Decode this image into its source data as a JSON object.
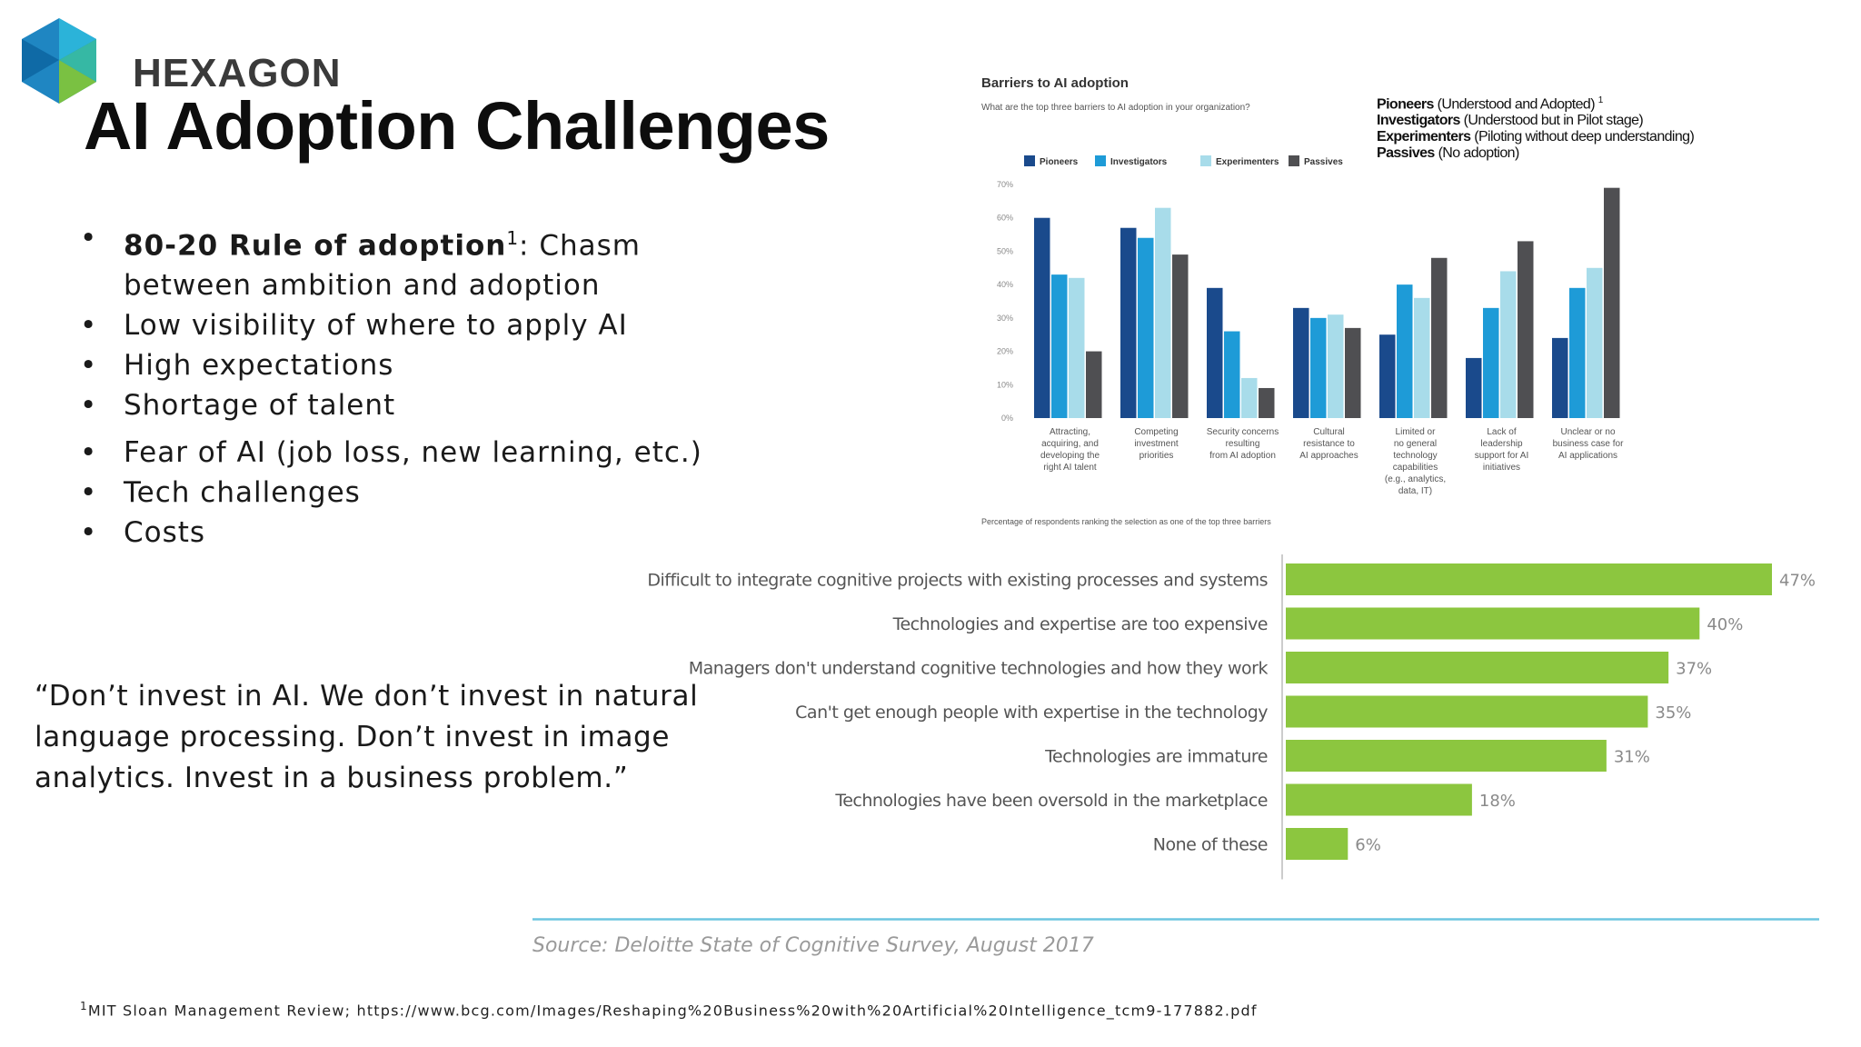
{
  "logo": {
    "text": "HEXAGON",
    "colors": [
      "#0f6aa6",
      "#2bb3d9",
      "#7ac142",
      "#3a3a3a"
    ]
  },
  "title": "AI Adoption Challenges",
  "bullets": [
    {
      "bold": "80-20 Rule of adoption",
      "sup": "1",
      "text": ": Chasm between ambition and adoption"
    },
    {
      "text": "Low visibility of where to apply AI"
    },
    {
      "text": "High expectations"
    },
    {
      "text": "Shortage of talent"
    },
    {
      "text": "Fear of AI (job loss, new learning, etc.)"
    },
    {
      "text": "Tech challenges"
    },
    {
      "text": "Costs"
    }
  ],
  "quote": "“Don’t invest in AI. We don’t invest in natural language processing. Don’t invest in image analytics. Invest in a business problem.”",
  "definitions": [
    {
      "term": "Pioneers",
      "desc": "  (Understood and Adopted)",
      "sup": "1"
    },
    {
      "term": "Investigators",
      "desc": " (Understood but in Pilot stage)"
    },
    {
      "term": "Experimenters",
      "desc": " (Piloting without deep understanding)"
    },
    {
      "term": "Passives",
      "desc": " (No adoption)"
    }
  ],
  "footnote": {
    "sup": "1",
    "text": "MIT Sloan Management Review; https://www.bcg.com/Images/Reshaping%20Business%20with%20Artificial%20Intelligence_tcm9-177882.pdf"
  },
  "source": "Source: Deloitte State of Cognitive Survey, August 2017",
  "chart_data": [
    {
      "type": "bar",
      "title": "Barriers to AI adoption",
      "subtitle": "What are the top three barriers to AI adoption in your organization?",
      "note": "Percentage of respondents ranking the selection as one of the top three barriers",
      "categories": [
        "Attracting, acquiring, and developing the right AI talent",
        "Competing investment priorities",
        "Security concerns resulting from AI adoption",
        "Cultural resistance to AI approaches",
        "Limited or no general technology capabilities (e.g., analytics, data, IT)",
        "Lack of leadership support for AI initiatives",
        "Unclear or no business case for AI applications"
      ],
      "category_lines": [
        [
          "Attracting,",
          "acquiring, and",
          "developing the",
          "right AI talent"
        ],
        [
          "Competing",
          "investment",
          "priorities"
        ],
        [
          "Security concerns",
          "resulting",
          "from AI adoption"
        ],
        [
          "Cultural",
          "resistance to",
          "AI approaches"
        ],
        [
          "Limited or",
          "no general",
          "technology",
          "capabilities",
          "(e.g., analytics,",
          "data, IT)"
        ],
        [
          "Lack of",
          "leadership",
          "support for AI",
          "initiatives"
        ],
        [
          "Unclear or no",
          "business case for",
          "AI applications"
        ]
      ],
      "series": [
        {
          "name": "Pioneers",
          "color": "#1a4a8c",
          "values": [
            60,
            57,
            39,
            33,
            25,
            18,
            24
          ]
        },
        {
          "name": "Investigators",
          "color": "#1e9bd7",
          "values": [
            43,
            54,
            26,
            30,
            40,
            33,
            39
          ]
        },
        {
          "name": "Experimenters",
          "color": "#a8dcea",
          "values": [
            42,
            63,
            12,
            31,
            36,
            44,
            45
          ]
        },
        {
          "name": "Passives",
          "color": "#4f4f52",
          "values": [
            20,
            49,
            9,
            27,
            48,
            53,
            69
          ]
        }
      ],
      "ylim": [
        0,
        70
      ],
      "yticks": [
        0,
        10,
        20,
        30,
        40,
        50,
        60,
        70
      ],
      "ytick_labels": [
        "0%",
        "10%",
        "20%",
        "30%",
        "40%",
        "50%",
        "60%",
        "70%"
      ],
      "legend_position": "top-left",
      "grid": false
    },
    {
      "type": "bar",
      "orientation": "horizontal",
      "categories": [
        "Difficult to integrate cognitive projects with existing processes and systems",
        "Technologies and expertise are too expensive",
        "Managers don't understand cognitive technologies and how they work",
        "Can't get enough people with expertise in the technology",
        "Technologies are immature",
        "Technologies have been oversold in the marketplace",
        "None of these"
      ],
      "values": [
        47,
        40,
        37,
        35,
        31,
        18,
        6
      ],
      "value_labels": [
        "47%",
        "40%",
        "37%",
        "35%",
        "31%",
        "18%",
        "6%"
      ],
      "color": "#8cc63f",
      "xlim": [
        0,
        47
      ],
      "grid": false
    }
  ]
}
